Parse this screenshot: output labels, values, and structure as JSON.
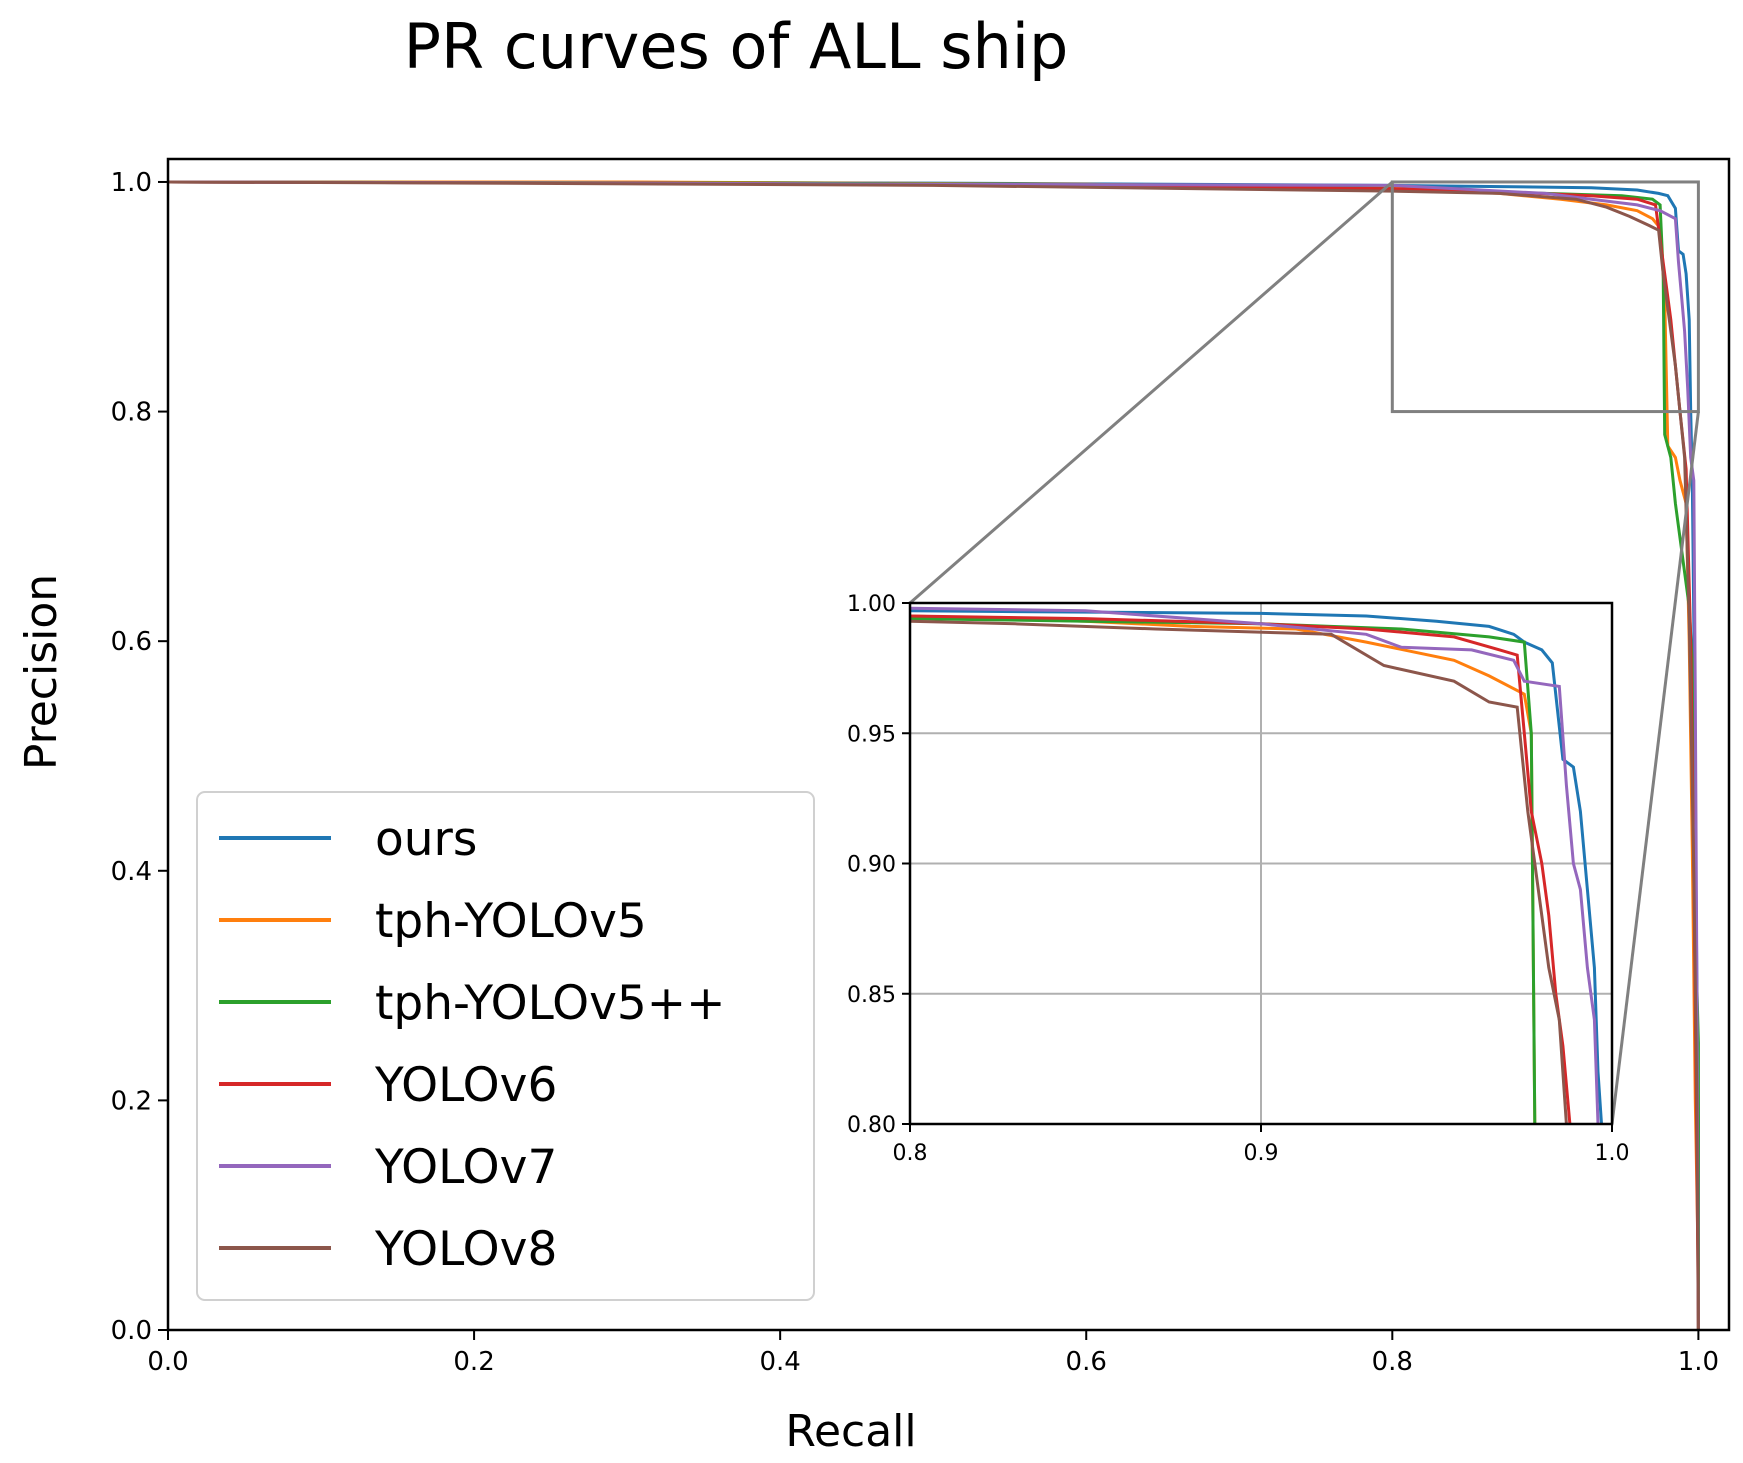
{
  "chart_data": {
    "type": "line",
    "title": "PR curves of ALL ship",
    "xlabel": "Recall",
    "ylabel": "Precision",
    "xlim": [
      0.0,
      1.02
    ],
    "ylim": [
      0.0,
      1.02
    ],
    "xticks": [
      "0.0",
      "0.2",
      "0.4",
      "0.6",
      "0.8",
      "1.0"
    ],
    "yticks": [
      "0.0",
      "0.2",
      "0.4",
      "0.6",
      "0.8",
      "1.0"
    ],
    "legend_position": "lower-left",
    "series": [
      {
        "name": "ours",
        "color": "#1f77b4",
        "points": [
          [
            0.0,
            1.0
          ],
          [
            0.2,
            1.0
          ],
          [
            0.5,
            0.999
          ],
          [
            0.8,
            0.997
          ],
          [
            0.93,
            0.995
          ],
          [
            0.96,
            0.993
          ],
          [
            0.974,
            0.99
          ],
          [
            0.98,
            0.988
          ],
          [
            0.985,
            0.977
          ],
          [
            0.987,
            0.94
          ],
          [
            0.99,
            0.937
          ],
          [
            0.992,
            0.92
          ],
          [
            0.994,
            0.88
          ],
          [
            0.995,
            0.8
          ],
          [
            0.996,
            0.74
          ],
          [
            0.997,
            0.62
          ],
          [
            0.998,
            0.45
          ],
          [
            0.999,
            0.3
          ],
          [
            1.0,
            0.18
          ],
          [
            1.0,
            0.0
          ]
        ]
      },
      {
        "name": "tph-YOLOv5",
        "color": "#ff7f0e",
        "points": [
          [
            0.0,
            1.0
          ],
          [
            0.3,
            1.0
          ],
          [
            0.6,
            0.998
          ],
          [
            0.8,
            0.995
          ],
          [
            0.87,
            0.99
          ],
          [
            0.91,
            0.985
          ],
          [
            0.94,
            0.98
          ],
          [
            0.96,
            0.975
          ],
          [
            0.97,
            0.968
          ],
          [
            0.975,
            0.96
          ],
          [
            0.978,
            0.9
          ],
          [
            0.98,
            0.77
          ],
          [
            0.985,
            0.76
          ],
          [
            0.988,
            0.74
          ],
          [
            0.992,
            0.72
          ],
          [
            0.994,
            0.6
          ],
          [
            0.996,
            0.42
          ],
          [
            0.998,
            0.2
          ],
          [
            1.0,
            0.05
          ],
          [
            1.0,
            0.0
          ]
        ]
      },
      {
        "name": "tph-YOLOv5++",
        "color": "#2ca02c",
        "points": [
          [
            0.0,
            1.0
          ],
          [
            0.4,
            0.999
          ],
          [
            0.7,
            0.997
          ],
          [
            0.8,
            0.994
          ],
          [
            0.9,
            0.99
          ],
          [
            0.95,
            0.988
          ],
          [
            0.97,
            0.985
          ],
          [
            0.975,
            0.98
          ],
          [
            0.977,
            0.92
          ],
          [
            0.978,
            0.78
          ],
          [
            0.982,
            0.76
          ],
          [
            0.985,
            0.72
          ],
          [
            0.988,
            0.69
          ],
          [
            0.991,
            0.66
          ],
          [
            0.994,
            0.63
          ],
          [
            0.996,
            0.58
          ],
          [
            0.998,
            0.35
          ],
          [
            1.0,
            0.25
          ],
          [
            1.0,
            0.0
          ]
        ]
      },
      {
        "name": "YOLOv6",
        "color": "#d62728",
        "points": [
          [
            0.0,
            1.0
          ],
          [
            0.3,
            0.999
          ],
          [
            0.6,
            0.997
          ],
          [
            0.8,
            0.994
          ],
          [
            0.88,
            0.991
          ],
          [
            0.93,
            0.988
          ],
          [
            0.96,
            0.985
          ],
          [
            0.972,
            0.98
          ],
          [
            0.975,
            0.95
          ],
          [
            0.978,
            0.92
          ],
          [
            0.982,
            0.88
          ],
          [
            0.985,
            0.84
          ],
          [
            0.988,
            0.8
          ],
          [
            0.992,
            0.75
          ],
          [
            0.995,
            0.6
          ],
          [
            0.997,
            0.4
          ],
          [
            0.999,
            0.15
          ],
          [
            1.0,
            0.0
          ]
        ]
      },
      {
        "name": "YOLOv7",
        "color": "#9467bd",
        "points": [
          [
            0.0,
            1.0
          ],
          [
            0.3,
            0.999
          ],
          [
            0.5,
            0.998
          ],
          [
            0.8,
            0.997
          ],
          [
            0.9,
            0.99
          ],
          [
            0.93,
            0.985
          ],
          [
            0.96,
            0.98
          ],
          [
            0.975,
            0.975
          ],
          [
            0.985,
            0.968
          ],
          [
            0.987,
            0.93
          ],
          [
            0.989,
            0.9
          ],
          [
            0.991,
            0.87
          ],
          [
            0.993,
            0.82
          ],
          [
            0.995,
            0.76
          ],
          [
            0.997,
            0.74
          ],
          [
            0.998,
            0.55
          ],
          [
            0.999,
            0.3
          ],
          [
            1.0,
            0.0
          ]
        ]
      },
      {
        "name": "YOLOv8",
        "color": "#8c564b",
        "points": [
          [
            0.0,
            1.0
          ],
          [
            0.2,
            0.999
          ],
          [
            0.5,
            0.997
          ],
          [
            0.8,
            0.992
          ],
          [
            0.87,
            0.99
          ],
          [
            0.92,
            0.985
          ],
          [
            0.94,
            0.978
          ],
          [
            0.955,
            0.97
          ],
          [
            0.968,
            0.962
          ],
          [
            0.974,
            0.958
          ],
          [
            0.977,
            0.92
          ],
          [
            0.981,
            0.88
          ],
          [
            0.985,
            0.84
          ],
          [
            0.988,
            0.8
          ],
          [
            0.991,
            0.76
          ],
          [
            0.994,
            0.62
          ],
          [
            0.997,
            0.4
          ],
          [
            0.999,
            0.2
          ],
          [
            1.0,
            0.0
          ]
        ]
      }
    ],
    "inset": {
      "xlim": [
        0.8,
        1.0
      ],
      "ylim": [
        0.8,
        1.0
      ],
      "xticks": [
        "0.8",
        "0.9",
        "1.0"
      ],
      "yticks": [
        "0.80",
        "0.85",
        "0.90",
        "0.95",
        "1.00"
      ],
      "grid": true,
      "series": [
        {
          "name": "ours",
          "points": [
            [
              0.8,
              0.997
            ],
            [
              0.9,
              0.996
            ],
            [
              0.93,
              0.995
            ],
            [
              0.95,
              0.993
            ],
            [
              0.965,
              0.991
            ],
            [
              0.972,
              0.988
            ],
            [
              0.975,
              0.985
            ],
            [
              0.98,
              0.982
            ],
            [
              0.983,
              0.977
            ],
            [
              0.986,
              0.94
            ],
            [
              0.989,
              0.937
            ],
            [
              0.991,
              0.92
            ],
            [
              0.993,
              0.89
            ],
            [
              0.995,
              0.86
            ],
            [
              0.996,
              0.82
            ],
            [
              0.997,
              0.8
            ]
          ]
        },
        {
          "name": "tph-YOLOv5",
          "points": [
            [
              0.8,
              0.995
            ],
            [
              0.85,
              0.993
            ],
            [
              0.88,
              0.991
            ],
            [
              0.91,
              0.99
            ],
            [
              0.93,
              0.985
            ],
            [
              0.955,
              0.978
            ],
            [
              0.965,
              0.972
            ],
            [
              0.975,
              0.965
            ],
            [
              0.977,
              0.95
            ],
            [
              0.978,
              0.8
            ]
          ]
        },
        {
          "name": "tph-YOLOv5++",
          "points": [
            [
              0.8,
              0.994
            ],
            [
              0.85,
              0.993
            ],
            [
              0.9,
              0.992
            ],
            [
              0.94,
              0.99
            ],
            [
              0.965,
              0.987
            ],
            [
              0.975,
              0.985
            ],
            [
              0.977,
              0.95
            ],
            [
              0.978,
              0.8
            ]
          ]
        },
        {
          "name": "YOLOv6",
          "points": [
            [
              0.8,
              0.995
            ],
            [
              0.85,
              0.994
            ],
            [
              0.9,
              0.992
            ],
            [
              0.93,
              0.99
            ],
            [
              0.955,
              0.987
            ],
            [
              0.968,
              0.982
            ],
            [
              0.973,
              0.98
            ],
            [
              0.975,
              0.95
            ],
            [
              0.977,
              0.92
            ],
            [
              0.98,
              0.9
            ],
            [
              0.982,
              0.88
            ],
            [
              0.984,
              0.85
            ],
            [
              0.986,
              0.83
            ],
            [
              0.988,
              0.8
            ]
          ]
        },
        {
          "name": "YOLOv7",
          "points": [
            [
              0.8,
              0.998
            ],
            [
              0.85,
              0.997
            ],
            [
              0.9,
              0.992
            ],
            [
              0.93,
              0.988
            ],
            [
              0.94,
              0.983
            ],
            [
              0.96,
              0.982
            ],
            [
              0.972,
              0.978
            ],
            [
              0.975,
              0.97
            ],
            [
              0.985,
              0.968
            ],
            [
              0.987,
              0.93
            ],
            [
              0.989,
              0.9
            ],
            [
              0.991,
              0.89
            ],
            [
              0.993,
              0.86
            ],
            [
              0.995,
              0.84
            ],
            [
              0.996,
              0.8
            ]
          ]
        },
        {
          "name": "YOLOv8",
          "points": [
            [
              0.8,
              0.993
            ],
            [
              0.83,
              0.992
            ],
            [
              0.87,
              0.99
            ],
            [
              0.92,
              0.988
            ],
            [
              0.935,
              0.976
            ],
            [
              0.955,
              0.97
            ],
            [
              0.965,
              0.962
            ],
            [
              0.973,
              0.96
            ],
            [
              0.976,
              0.92
            ],
            [
              0.979,
              0.89
            ],
            [
              0.982,
              0.86
            ],
            [
              0.985,
              0.84
            ],
            [
              0.987,
              0.8
            ]
          ]
        }
      ]
    }
  }
}
